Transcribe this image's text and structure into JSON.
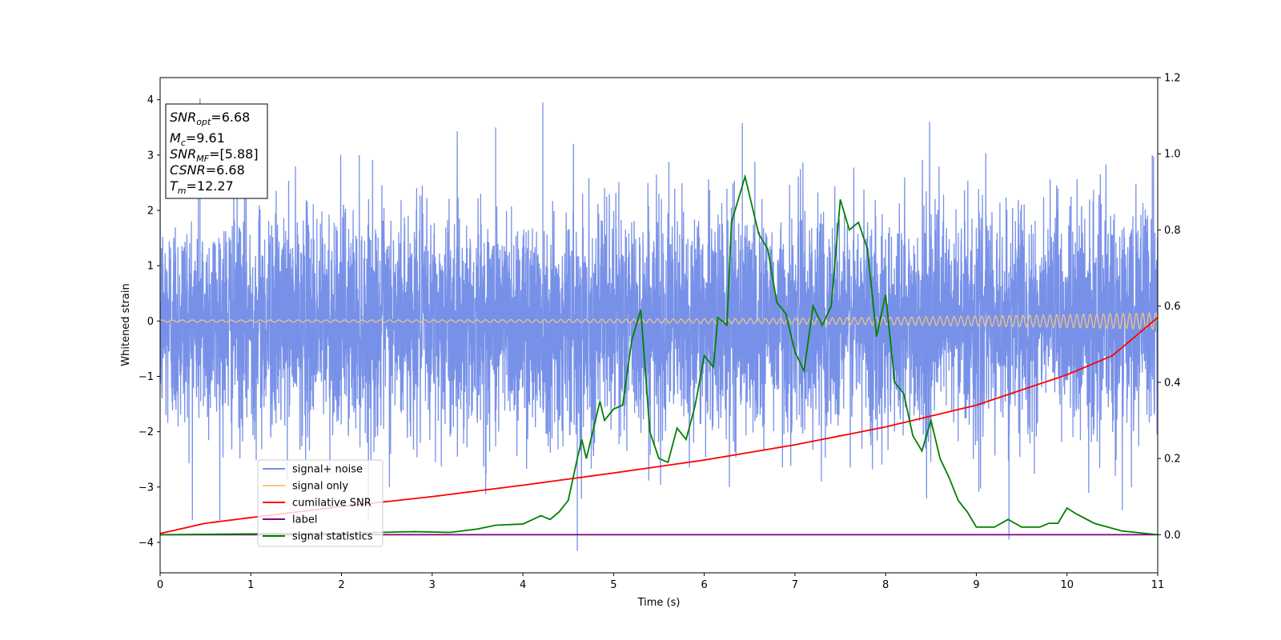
{
  "chart_data": {
    "type": "line",
    "title": "",
    "xlabel": "Time (s)",
    "ylabel": "Whitened strain",
    "xlim": [
      0,
      11
    ],
    "ylim": [
      -4.55,
      4.4
    ],
    "y2lim": [
      -0.1,
      1.2
    ],
    "xticks": [
      0,
      1,
      2,
      3,
      4,
      5,
      6,
      7,
      8,
      9,
      10,
      11
    ],
    "xtick_labels": [
      "0",
      "1",
      "2",
      "3",
      "4",
      "5",
      "6",
      "7",
      "8",
      "9",
      "10",
      "11"
    ],
    "yticks": [
      -4,
      -3,
      -2,
      -1,
      0,
      1,
      2,
      3,
      4
    ],
    "ytick_labels": [
      "−4",
      "−3",
      "−2",
      "−1",
      "0",
      "1",
      "2",
      "3",
      "4"
    ],
    "y2ticks": [
      0.0,
      0.2,
      0.4,
      0.6,
      0.8,
      1.0,
      1.2
    ],
    "y2tick_labels": [
      "0.0",
      "0.2",
      "0.4",
      "0.6",
      "0.8",
      "1.0",
      "1.2"
    ],
    "grid": false,
    "legend_placement": "lower-left",
    "annotation_box": {
      "placement": "top-left",
      "lines": [
        {
          "base": "SNR",
          "sub": "opt",
          "value": "=6.68"
        },
        {
          "base": "M",
          "sub": "c",
          "value": "=9.61"
        },
        {
          "base": "SNR",
          "sub": "MF",
          "value": "=[5.88]"
        },
        {
          "base": "CSNR",
          "sub": "",
          "value": "=6.68"
        },
        {
          "base": "T",
          "sub": "m",
          "value": "=12.27"
        }
      ]
    },
    "series": [
      {
        "name": "signal+ noise",
        "color": "#7891e8",
        "axis": "left",
        "style": "dense noise trace, approx. gaussian with sigma ~1.0, peaks to about ±4",
        "x_range": [
          0,
          11
        ],
        "noise_sigma": 1.0,
        "extreme_points": [
          [
            0.44,
            4.02
          ],
          [
            4.22,
            3.95
          ],
          [
            4.6,
            -4.15
          ],
          [
            6.42,
            3.58
          ],
          [
            9.36,
            -3.95
          ],
          [
            3.7,
            3.5
          ],
          [
            10.94,
            3.0
          ]
        ]
      },
      {
        "name": "signal only",
        "color": "#f5c77e",
        "axis": "left",
        "style": "chirp oscillation around 0, amplitude growing with time",
        "amplitude_start": 0.02,
        "amplitude_end": 0.15
      },
      {
        "name": "cumilative SNR",
        "color": "#ff0000",
        "axis": "right",
        "x": [
          0,
          0.5,
          1,
          2,
          3,
          4,
          5,
          6,
          7,
          8,
          9,
          10,
          10.5,
          11
        ],
        "y": [
          0.003,
          0.03,
          0.045,
          0.074,
          0.1,
          0.13,
          0.162,
          0.196,
          0.236,
          0.283,
          0.34,
          0.42,
          0.47,
          0.57
        ]
      },
      {
        "name": "label",
        "color": "#800080",
        "axis": "right",
        "x": [
          0,
          11
        ],
        "y": [
          0,
          0
        ]
      },
      {
        "name": "signal statistics",
        "color": "#008000",
        "axis": "right",
        "x": [
          0,
          0.5,
          1,
          2,
          2.8,
          3.2,
          3.5,
          3.7,
          4.0,
          4.2,
          4.3,
          4.4,
          4.5,
          4.6,
          4.65,
          4.7,
          4.8,
          4.85,
          4.9,
          5.0,
          5.1,
          5.2,
          5.3,
          5.4,
          5.5,
          5.6,
          5.7,
          5.8,
          5.9,
          6.0,
          6.1,
          6.15,
          6.25,
          6.3,
          6.4,
          6.45,
          6.55,
          6.6,
          6.7,
          6.8,
          6.9,
          7.0,
          7.1,
          7.2,
          7.3,
          7.4,
          7.5,
          7.6,
          7.7,
          7.8,
          7.9,
          8.0,
          8.1,
          8.2,
          8.3,
          8.4,
          8.5,
          8.6,
          8.7,
          8.8,
          8.9,
          9.0,
          9.2,
          9.35,
          9.5,
          9.7,
          9.8,
          9.9,
          10.0,
          10.1,
          10.3,
          10.6,
          11.0
        ],
        "y": [
          0.0,
          0.001,
          0.002,
          0.004,
          0.008,
          0.006,
          0.015,
          0.025,
          0.028,
          0.05,
          0.04,
          0.06,
          0.09,
          0.2,
          0.25,
          0.2,
          0.3,
          0.35,
          0.3,
          0.33,
          0.34,
          0.51,
          0.59,
          0.27,
          0.2,
          0.19,
          0.28,
          0.25,
          0.34,
          0.47,
          0.44,
          0.57,
          0.55,
          0.82,
          0.9,
          0.94,
          0.84,
          0.79,
          0.75,
          0.61,
          0.58,
          0.48,
          0.43,
          0.6,
          0.55,
          0.6,
          0.88,
          0.8,
          0.82,
          0.75,
          0.52,
          0.63,
          0.4,
          0.37,
          0.26,
          0.22,
          0.3,
          0.2,
          0.15,
          0.09,
          0.06,
          0.02,
          0.02,
          0.04,
          0.02,
          0.02,
          0.03,
          0.03,
          0.07,
          0.055,
          0.03,
          0.01,
          0.0
        ]
      }
    ]
  }
}
